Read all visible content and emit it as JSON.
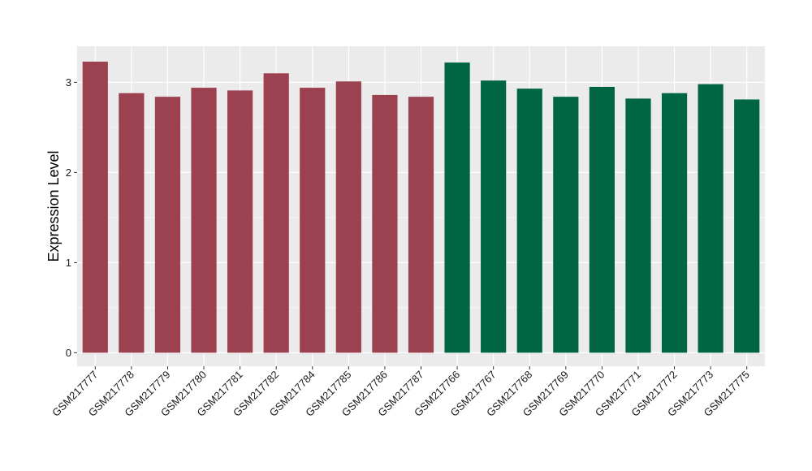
{
  "chart_data": {
    "type": "bar",
    "title": "",
    "xlabel": "",
    "ylabel": "Expression Level",
    "ylim": [
      -0.15,
      3.4
    ],
    "yticks": [
      0,
      1,
      2,
      3
    ],
    "grid": true,
    "legend": "none",
    "background": "#ebebeb",
    "gridline_color": "#ffffff",
    "categories": [
      "GSM217777",
      "GSM217778",
      "GSM217779",
      "GSM217780",
      "GSM217781",
      "GSM217782",
      "GSM217784",
      "GSM217785",
      "GSM217786",
      "GSM217787",
      "GSM217766",
      "GSM217767",
      "GSM217768",
      "GSM217769",
      "GSM217770",
      "GSM217771",
      "GSM217772",
      "GSM217773",
      "GSM217775"
    ],
    "values": [
      3.23,
      2.88,
      2.84,
      2.94,
      2.91,
      3.1,
      2.94,
      3.01,
      2.86,
      2.84,
      3.22,
      3.02,
      2.93,
      2.84,
      2.95,
      2.82,
      2.88,
      2.98,
      2.81
    ],
    "groups": [
      {
        "color": "#9b414f",
        "count": 10
      },
      {
        "color": "#006543",
        "count": 9
      }
    ]
  }
}
